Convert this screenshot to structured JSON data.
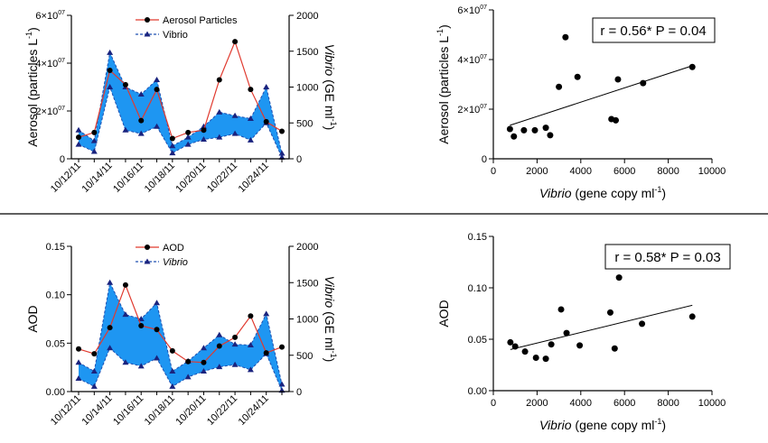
{
  "chart_data": [
    {
      "type": "line",
      "title": "",
      "x": [
        "10/12/11",
        "10/13/11",
        "10/14/11",
        "10/15/11",
        "10/16/11",
        "10/17/11",
        "10/18/11",
        "10/19/11",
        "10/20/11",
        "10/21/11",
        "10/22/11",
        "10/23/11",
        "10/24/11",
        "10/25/11"
      ],
      "x_tick_labels": [
        "10/12/11",
        "10/14/11",
        "10/16/11",
        "10/18/11",
        "10/20/11",
        "10/22/11",
        "10/24/11"
      ],
      "ylabel": "Aerosol (particles L",
      "ylabel_sup": "-1",
      "ylabel_tail": ")",
      "y_ticks": [
        "0",
        "2×10",
        "4×10",
        "6×10"
      ],
      "y_tick_sup": "07",
      "ylim": [
        0,
        60000000
      ],
      "y2label_italic": "Vibrio",
      "y2label": " (GE ml",
      "y2label_sup": "-1",
      "y2label_tail": ")",
      "y2_ticks": [
        "0",
        "500",
        "1000",
        "1500",
        "2000"
      ],
      "y2lim": [
        0,
        2000
      ],
      "legend": [
        "Aerosol Particles",
        "Vibrio"
      ],
      "legend_italic": false,
      "series": [
        {
          "name": "Aerosol Particles",
          "axis": "left",
          "values": [
            9000000,
            11000000,
            37000000,
            31000000,
            16000000,
            29000000,
            8500000,
            11000000,
            12000000,
            33000000,
            49000000,
            29000000,
            15500000,
            11500000
          ]
        },
        {
          "name": "Vibrio (upper)",
          "axis": "right",
          "values": [
            400,
            250,
            1480,
            1000,
            900,
            1100,
            180,
            300,
            450,
            650,
            600,
            560,
            1000,
            75
          ]
        },
        {
          "name": "Vibrio (lower)",
          "axis": "right",
          "values": [
            200,
            100,
            1000,
            400,
            350,
            450,
            80,
            200,
            270,
            300,
            350,
            260,
            500,
            20
          ]
        }
      ]
    },
    {
      "type": "scatter",
      "xlabel_italic": "Vibrio",
      "xlabel": " (gene copy ml",
      "xlabel_sup": "-1",
      "xlabel_tail": ")",
      "x_ticks": [
        "0",
        "2000",
        "4000",
        "6000",
        "8000",
        "10000"
      ],
      "xlim": [
        0,
        10000
      ],
      "ylabel": "Aerosol (particles L",
      "ylabel_sup": "-1",
      "ylabel_tail": ")",
      "y_ticks": [
        "0",
        "2×10",
        "4×10",
        "6×10"
      ],
      "y_tick_sup": "07",
      "ylim": [
        0,
        60000000
      ],
      "annotation": "r = 0.56*  P = 0.04",
      "points": [
        [
          760,
          12000000
        ],
        [
          940,
          9000000
        ],
        [
          1400,
          11500000
        ],
        [
          1900,
          11500000
        ],
        [
          2400,
          12500000
        ],
        [
          2600,
          9500000
        ],
        [
          3000,
          29000000
        ],
        [
          3300,
          49000000
        ],
        [
          3850,
          33000000
        ],
        [
          5400,
          16000000
        ],
        [
          5600,
          15500000
        ],
        [
          5700,
          32000000
        ],
        [
          6850,
          30500000
        ],
        [
          9100,
          37000000
        ]
      ],
      "fit": [
        [
          760,
          13500000
        ],
        [
          9100,
          37500000
        ]
      ]
    },
    {
      "type": "line",
      "title": "",
      "x": [
        "10/12/11",
        "10/13/11",
        "10/14/11",
        "10/15/11",
        "10/16/11",
        "10/17/11",
        "10/18/11",
        "10/19/11",
        "10/20/11",
        "10/21/11",
        "10/22/11",
        "10/23/11",
        "10/24/11",
        "10/25/11"
      ],
      "x_tick_labels": [
        "10/12/11",
        "10/14/11",
        "10/16/11",
        "10/18/11",
        "10/20/11",
        "10/22/11",
        "10/24/11"
      ],
      "ylabel": "AOD",
      "y_ticks": [
        "0.00",
        "0.05",
        "0.10",
        "0.15"
      ],
      "ylim": [
        0,
        0.15
      ],
      "y2label_italic": "Vibrio",
      "y2label": " (GE ml",
      "y2label_sup": "-1",
      "y2label_tail": ")",
      "y2_ticks": [
        "0",
        "500",
        "1000",
        "1500",
        "2000"
      ],
      "y2lim": [
        0,
        2000
      ],
      "legend": [
        "AOD",
        "Vibrio"
      ],
      "legend_italic": true,
      "series": [
        {
          "name": "AOD",
          "axis": "left",
          "values": [
            0.044,
            0.039,
            0.066,
            0.11,
            0.068,
            0.064,
            0.042,
            0.031,
            0.03,
            0.047,
            0.056,
            0.078,
            0.04,
            0.046
          ]
        },
        {
          "name": "Vibrio (upper)",
          "axis": "right",
          "values": [
            400,
            280,
            1500,
            1060,
            1000,
            1220,
            280,
            420,
            600,
            780,
            650,
            640,
            1070,
            100
          ]
        },
        {
          "name": "Vibrio (lower)",
          "axis": "right",
          "values": [
            180,
            70,
            600,
            400,
            350,
            460,
            70,
            200,
            280,
            340,
            370,
            300,
            520,
            15
          ]
        }
      ]
    },
    {
      "type": "scatter",
      "xlabel_italic": "Vibrio",
      "xlabel": " (gene copy ml",
      "xlabel_sup": "-1",
      "xlabel_tail": ")",
      "x_ticks": [
        "0",
        "2000",
        "4000",
        "6000",
        "8000",
        "10000"
      ],
      "xlim": [
        0,
        10000
      ],
      "ylabel": "AOD",
      "y_ticks": [
        "0.00",
        "0.05",
        "0.10",
        "0.15"
      ],
      "ylim": [
        0,
        0.15
      ],
      "annotation": "r = 0.58*  P = 0.03",
      "points": [
        [
          780,
          0.047
        ],
        [
          1000,
          0.043
        ],
        [
          1450,
          0.038
        ],
        [
          1950,
          0.032
        ],
        [
          2400,
          0.031
        ],
        [
          2650,
          0.045
        ],
        [
          3100,
          0.079
        ],
        [
          3350,
          0.056
        ],
        [
          3950,
          0.044
        ],
        [
          5350,
          0.076
        ],
        [
          5550,
          0.041
        ],
        [
          5750,
          0.11
        ],
        [
          6800,
          0.065
        ],
        [
          9100,
          0.072
        ]
      ],
      "fit": [
        [
          780,
          0.04
        ],
        [
          9100,
          0.083
        ]
      ]
    }
  ]
}
